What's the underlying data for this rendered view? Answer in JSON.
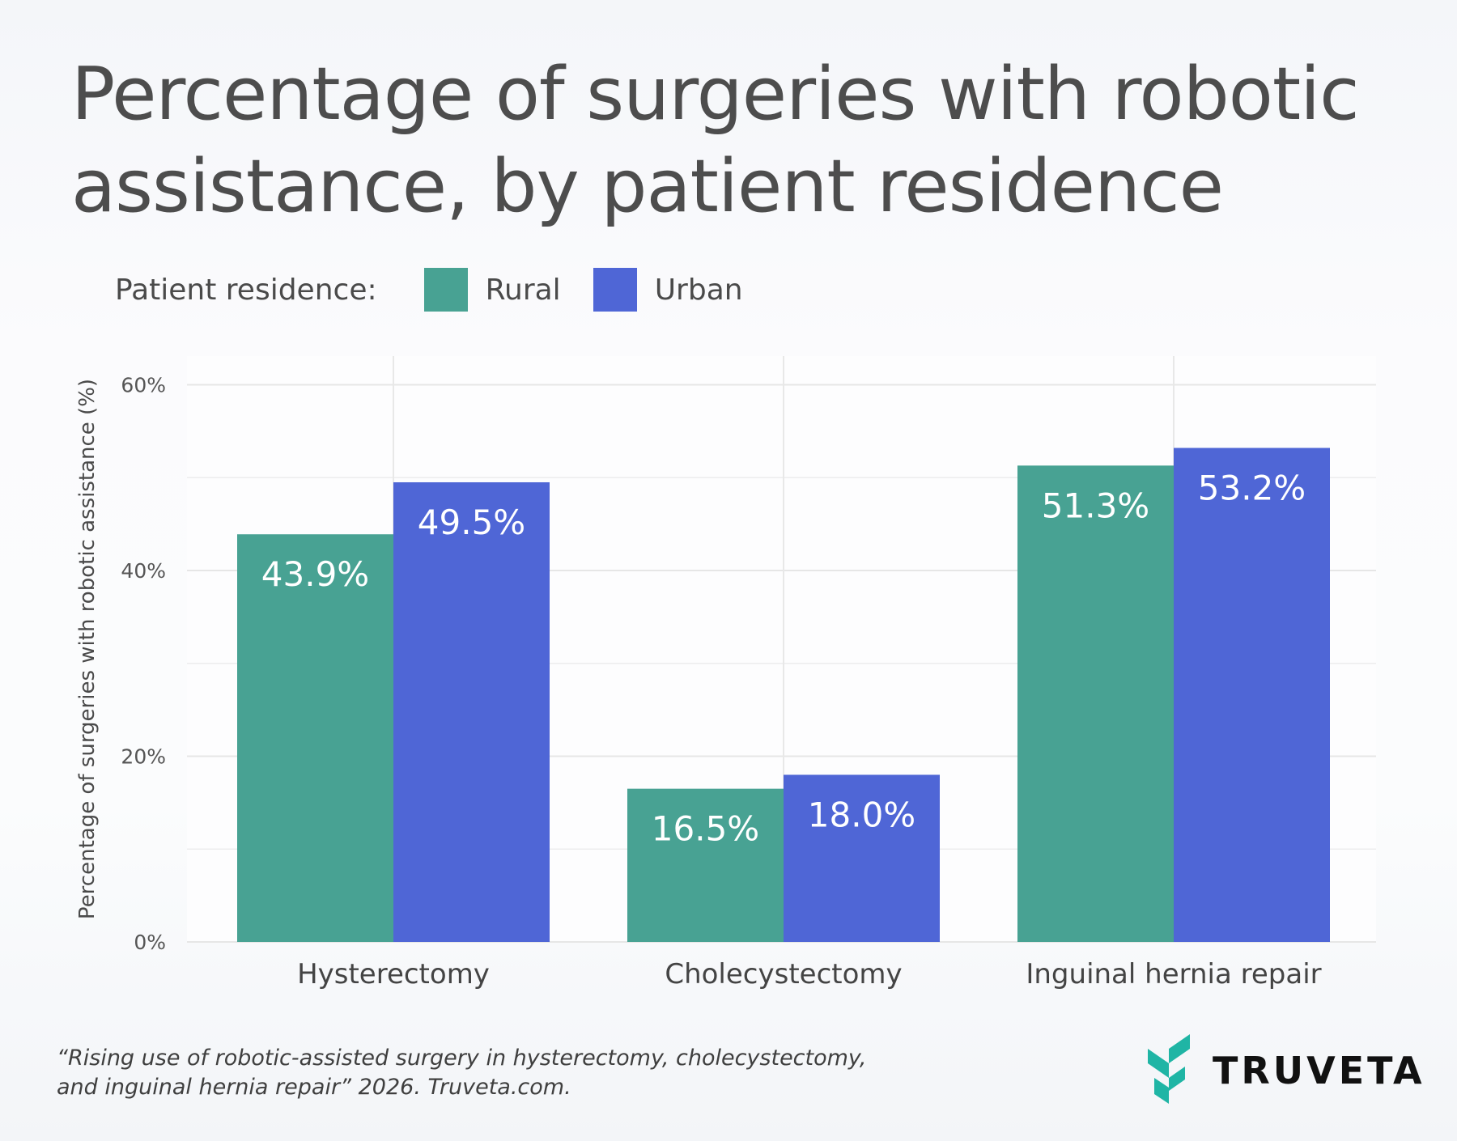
{
  "title": "Percentage of surgeries with robotic assistance, by patient residence",
  "legend": {
    "title": "Patient residence:",
    "items": [
      {
        "label": "Rural",
        "color": "#48a293"
      },
      {
        "label": "Urban",
        "color": "#4f66d6"
      }
    ]
  },
  "chart_data": {
    "type": "bar",
    "categories": [
      "Hysterectomy",
      "Cholecystectomy",
      "Inguinal hernia repair"
    ],
    "series": [
      {
        "name": "Rural",
        "values": [
          43.9,
          16.5,
          51.3
        ],
        "labels": [
          "43.9%",
          "16.5%",
          "51.3%"
        ],
        "color": "#48a293"
      },
      {
        "name": "Urban",
        "values": [
          49.5,
          18.0,
          53.2
        ],
        "labels": [
          "49.5%",
          "18.0%",
          "53.2%"
        ],
        "color": "#4f66d6"
      }
    ],
    "title": "Percentage of surgeries with robotic assistance, by patient residence",
    "xlabel": "",
    "ylabel": "Percentage of surgeries with robotic assistance (%)",
    "ylim": [
      0,
      63
    ],
    "yticks": [
      0,
      20,
      40,
      60
    ],
    "ytick_labels": [
      "0%",
      "20%",
      "40%",
      "60%"
    ],
    "grid": true,
    "legend_position": "top-left"
  },
  "source": {
    "line1": "“Rising use of robotic-assisted surgery in hysterectomy, cholecystectomy,",
    "line2": "and inguinal hernia repair” 2026. Truveta.com."
  },
  "logo": {
    "text": "TRUVETA",
    "color": "#1fb5a5"
  }
}
